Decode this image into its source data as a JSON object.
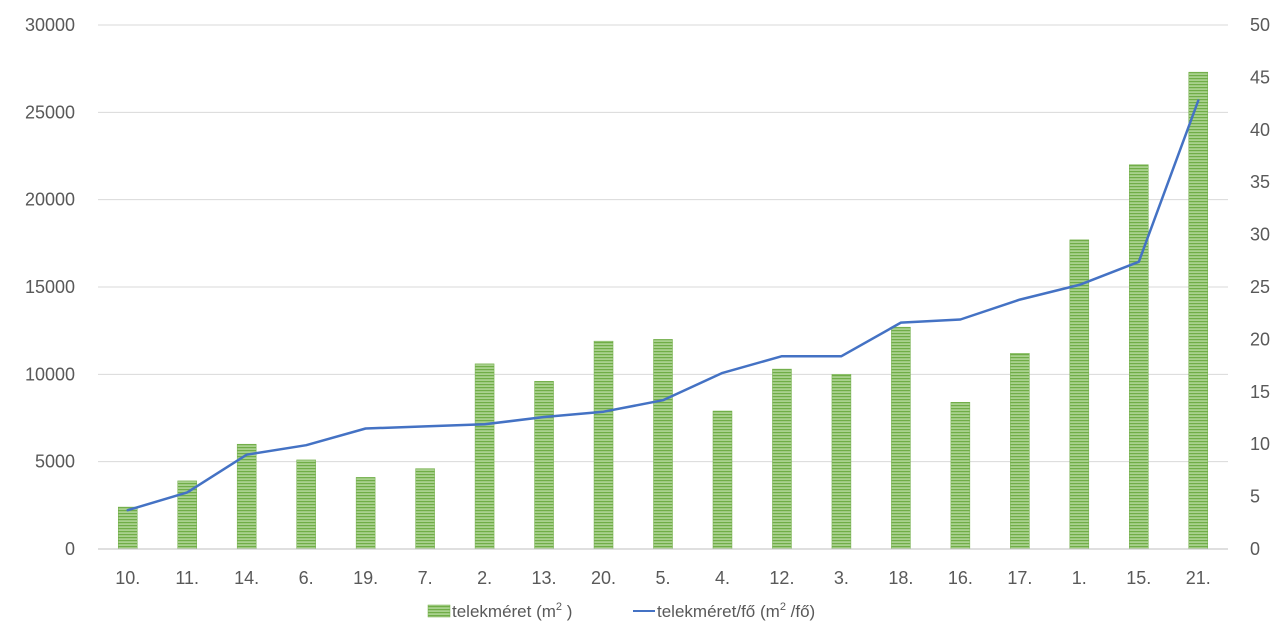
{
  "chart_data": {
    "type": "bar",
    "categories": [
      "10.",
      "11.",
      "14.",
      "6.",
      "19.",
      "7.",
      "2.",
      "13.",
      "20.",
      "5.",
      "4.",
      "12.",
      "3.",
      "18.",
      "16.",
      "17.",
      "1.",
      "15.",
      "21."
    ],
    "series": [
      {
        "name": "telekméret (m2 )",
        "type": "bar",
        "axis": "left",
        "color": "#8DBF52",
        "values": [
          2400,
          3900,
          6000,
          5100,
          4100,
          4600,
          10600,
          9600,
          11900,
          12000,
          7900,
          10300,
          10000,
          12700,
          8400,
          11200,
          17700,
          22000,
          27300
        ]
      },
      {
        "name": "telekméret/fő (m2 /fő)",
        "type": "line",
        "axis": "right",
        "color": "#4472C4",
        "values": [
          3.7,
          5.4,
          9.0,
          9.9,
          11.5,
          11.7,
          11.9,
          12.6,
          13.1,
          14.2,
          16.8,
          18.4,
          18.4,
          21.6,
          21.9,
          23.8,
          25.2,
          27.4,
          42.8
        ]
      }
    ],
    "y_left": {
      "min": 0,
      "max": 30000,
      "step": 5000
    },
    "y_right": {
      "min": 0,
      "max": 50,
      "step": 5
    },
    "grid": true,
    "legend_position": "bottom",
    "legend": [
      {
        "label_main": "telekméret (m",
        "label_sup": "2",
        "label_end": " )"
      },
      {
        "label_main": "telekméret/fő (m",
        "label_sup": "2",
        "label_end": " /fő)"
      }
    ]
  }
}
